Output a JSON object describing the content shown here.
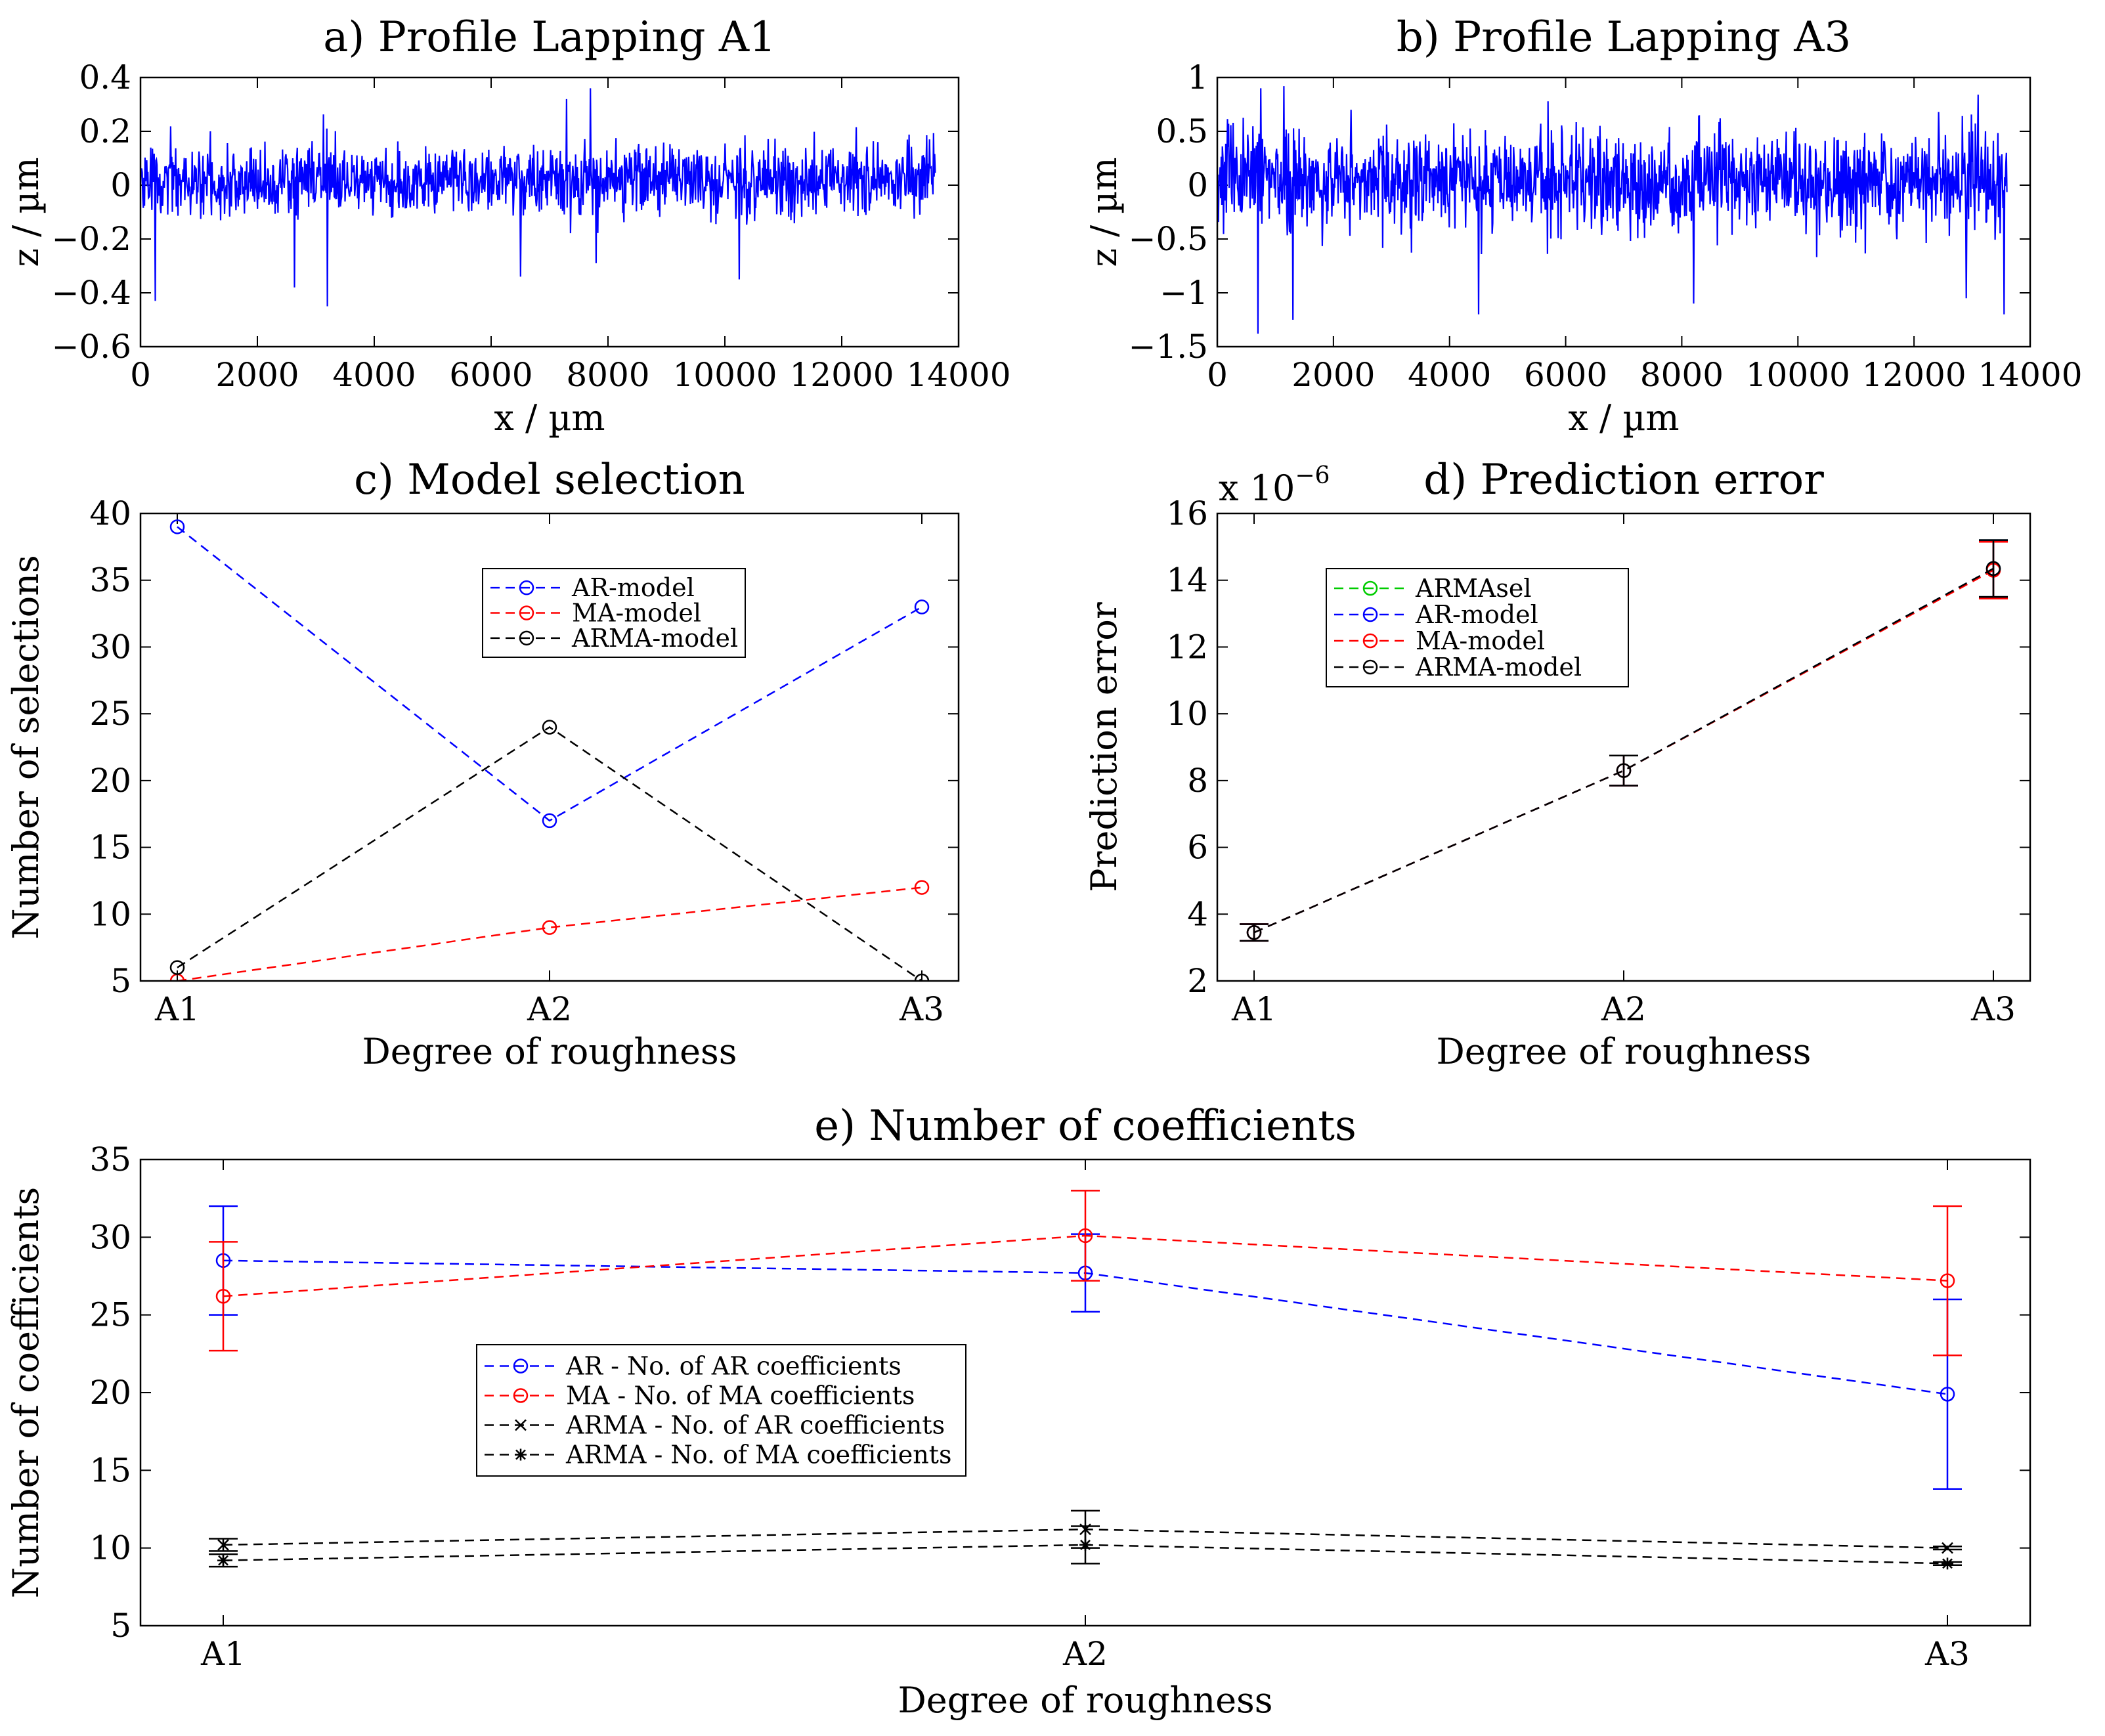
{
  "figure": {
    "background": "#ffffff"
  },
  "chart_data": [
    {
      "id": "a",
      "type": "line",
      "title": "a) Profile Lapping A1",
      "xlabel": "x / µm",
      "ylabel": "z / µm",
      "xlim": [
        0,
        14000
      ],
      "ylim": [
        -0.6,
        0.4
      ],
      "xticks": [
        0,
        2000,
        4000,
        6000,
        8000,
        10000,
        12000,
        14000
      ],
      "xtick_labels": [
        "0",
        "2000",
        "4000",
        "6000",
        "8000",
        "10000",
        "12000",
        "14000"
      ],
      "yticks": [
        -0.6,
        -0.4,
        -0.2,
        0,
        0.2,
        0.4
      ],
      "ytick_labels": [
        "−0.6",
        "−0.4",
        "−0.2",
        "0",
        "0.2",
        "0.4"
      ],
      "series": [
        {
          "name": "profile",
          "color": "#0000ff",
          "x_range": [
            0,
            13600
          ],
          "samples": 1400,
          "sigma": 0.065,
          "mean": 0.02,
          "seed": 11,
          "spikes": [
            {
              "x": 7700,
              "y": 0.36
            },
            {
              "x": 3200,
              "y": -0.45
            },
            {
              "x": 250,
              "y": -0.43
            },
            {
              "x": 2630,
              "y": -0.38
            },
            {
              "x": 6500,
              "y": -0.34
            },
            {
              "x": 7800,
              "y": -0.29
            },
            {
              "x": 10250,
              "y": -0.35
            },
            {
              "x": 1200,
              "y": 0.2
            },
            {
              "x": 13500,
              "y": 0.17
            }
          ]
        }
      ]
    },
    {
      "id": "b",
      "type": "line",
      "title": "b) Profile Lapping A3",
      "xlabel": "x / µm",
      "ylabel": "z / µm",
      "xlim": [
        0,
        14000
      ],
      "ylim": [
        -1.5,
        1
      ],
      "xticks": [
        0,
        2000,
        4000,
        6000,
        8000,
        10000,
        12000,
        14000
      ],
      "xtick_labels": [
        "0",
        "2000",
        "4000",
        "6000",
        "8000",
        "10000",
        "12000",
        "14000"
      ],
      "yticks": [
        -1.5,
        -1,
        -0.5,
        0,
        0.5,
        1
      ],
      "ytick_labels": [
        "−1.5",
        "−1",
        "−0.5",
        "0",
        "0.5",
        "1"
      ],
      "series": [
        {
          "name": "profile",
          "color": "#0000ff",
          "x_range": [
            0,
            13600
          ],
          "samples": 1400,
          "sigma": 0.23,
          "mean": 0.05,
          "seed": 23,
          "spikes": [
            {
              "x": 700,
              "y": -1.38
            },
            {
              "x": 1150,
              "y": 0.92
            },
            {
              "x": 750,
              "y": 0.9
            },
            {
              "x": 1300,
              "y": -1.25
            },
            {
              "x": 4500,
              "y": -1.2
            },
            {
              "x": 8200,
              "y": -1.1
            },
            {
              "x": 13100,
              "y": 0.84
            },
            {
              "x": 13550,
              "y": -1.2
            },
            {
              "x": 12900,
              "y": -1.05
            },
            {
              "x": 2300,
              "y": 0.7
            }
          ]
        }
      ]
    },
    {
      "id": "c",
      "type": "line",
      "title": "c) Model selection",
      "xlabel": "Degree of roughness",
      "ylabel": "Number of selections",
      "categories": [
        "A1",
        "A2",
        "A3"
      ],
      "ylim": [
        5,
        40
      ],
      "yticks": [
        5,
        10,
        15,
        20,
        25,
        30,
        35,
        40
      ],
      "ytick_labels": [
        "5",
        "10",
        "15",
        "20",
        "25",
        "30",
        "35",
        "40"
      ],
      "legend_position": "top-right",
      "series": [
        {
          "name": "AR-model",
          "color": "#0000ff",
          "marker": "o",
          "values": [
            39,
            17,
            33
          ]
        },
        {
          "name": "MA-model",
          "color": "#ff0000",
          "marker": "o",
          "values": [
            5,
            9,
            12
          ]
        },
        {
          "name": "ARMA-model",
          "color": "#000000",
          "marker": "o",
          "values": [
            6,
            24,
            5
          ]
        }
      ]
    },
    {
      "id": "d",
      "type": "line",
      "title": "d) Prediction error",
      "xlabel": "Degree of roughness",
      "ylabel": "Prediction error",
      "scale_base": "x 10",
      "scale_exp": "−6",
      "categories": [
        "A1",
        "A2",
        "A3"
      ],
      "ylim": [
        2,
        16
      ],
      "yticks": [
        2,
        4,
        6,
        8,
        10,
        12,
        14,
        16
      ],
      "ytick_labels": [
        "2",
        "4",
        "6",
        "8",
        "10",
        "12",
        "14",
        "16"
      ],
      "legend_position": "top-left",
      "series": [
        {
          "name": "ARMAsel",
          "color": "#00cc00",
          "marker": "o",
          "values": [
            3.45,
            8.3,
            14.35
          ],
          "errors": [
            0.25,
            0.45,
            0.85
          ]
        },
        {
          "name": "AR-model",
          "color": "#0000ff",
          "marker": "o",
          "values": [
            3.45,
            8.3,
            14.35
          ],
          "errors": [
            0.25,
            0.45,
            0.85
          ]
        },
        {
          "name": "MA-model",
          "color": "#ff0000",
          "marker": "o",
          "values": [
            3.45,
            8.3,
            14.3
          ],
          "errors": [
            0.25,
            0.45,
            0.85
          ]
        },
        {
          "name": "ARMA-model",
          "color": "#000000",
          "marker": "o",
          "values": [
            3.45,
            8.3,
            14.35
          ],
          "errors": [
            0.25,
            0.45,
            0.85
          ]
        }
      ]
    },
    {
      "id": "e",
      "type": "line",
      "title": "e) Number of coefficients",
      "xlabel": "Degree of roughness",
      "ylabel": "Number of coefficients",
      "categories": [
        "A1",
        "A2",
        "A3"
      ],
      "ylim": [
        5,
        35
      ],
      "yticks": [
        5,
        10,
        15,
        20,
        25,
        30,
        35
      ],
      "ytick_labels": [
        "5",
        "10",
        "15",
        "20",
        "25",
        "30",
        "35"
      ],
      "legend_position": "center-left",
      "series": [
        {
          "name": "AR - No. of AR coefficients",
          "color": "#0000ff",
          "marker": "o",
          "values": [
            28.5,
            27.7,
            19.9
          ],
          "errors": [
            3.5,
            2.5,
            6.1
          ]
        },
        {
          "name": "MA - No. of MA coefficients",
          "color": "#ff0000",
          "marker": "o",
          "values": [
            26.2,
            30.1,
            27.2
          ],
          "errors": [
            3.5,
            2.9,
            4.8
          ]
        },
        {
          "name": "ARMA - No. of AR coefficients",
          "color": "#000000",
          "marker": "x",
          "values": [
            10.2,
            11.2,
            10.0
          ],
          "errors": [
            0.4,
            1.2,
            0.1
          ]
        },
        {
          "name": "ARMA - No. of MA coefficients",
          "color": "#000000",
          "marker": "*",
          "values": [
            9.2,
            10.2,
            9.0
          ],
          "errors": [
            0.4,
            1.2,
            0.1
          ]
        }
      ]
    }
  ]
}
